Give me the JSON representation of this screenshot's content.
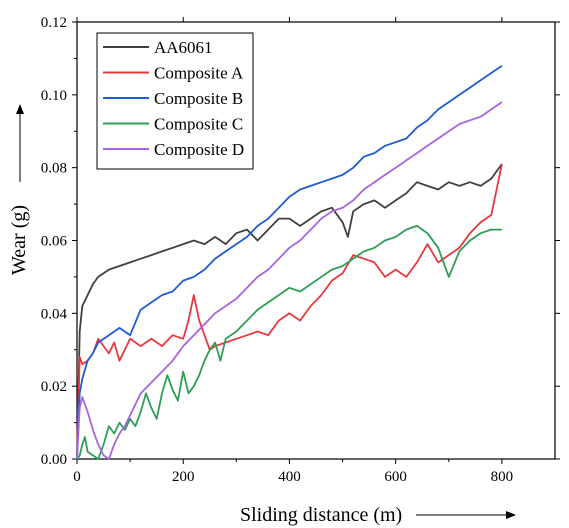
{
  "chart_data": {
    "type": "line",
    "title": "",
    "xlabel": "Sliding distance (m)",
    "ylabel": "Wear (g)",
    "xlim": [
      0,
      900
    ],
    "ylim": [
      0,
      0.12
    ],
    "xticks": [
      0,
      200,
      400,
      600,
      800
    ],
    "yticks": [
      0,
      0.02,
      0.04,
      0.06,
      0.08,
      0.1,
      0.12
    ],
    "xtick_labels": [
      "0",
      "200",
      "400",
      "600",
      "800"
    ],
    "ytick_labels": [
      "0.00",
      "0.02",
      "0.04",
      "0.06",
      "0.08",
      "0.10",
      "0.12"
    ],
    "grid": false,
    "legend_position": "top-left",
    "series": [
      {
        "name": "AA6061",
        "color": "#404040",
        "x": [
          0,
          5,
          10,
          20,
          30,
          40,
          50,
          60,
          80,
          100,
          120,
          140,
          160,
          180,
          200,
          220,
          240,
          260,
          280,
          300,
          320,
          340,
          360,
          380,
          400,
          420,
          440,
          460,
          480,
          500,
          510,
          520,
          540,
          560,
          580,
          600,
          620,
          640,
          660,
          680,
          700,
          720,
          740,
          760,
          780,
          800
        ],
        "values": [
          0.0,
          0.035,
          0.042,
          0.045,
          0.048,
          0.05,
          0.051,
          0.052,
          0.053,
          0.054,
          0.055,
          0.056,
          0.057,
          0.058,
          0.059,
          0.06,
          0.059,
          0.061,
          0.059,
          0.062,
          0.063,
          0.06,
          0.063,
          0.066,
          0.066,
          0.064,
          0.066,
          0.068,
          0.069,
          0.065,
          0.061,
          0.068,
          0.07,
          0.071,
          0.069,
          0.071,
          0.073,
          0.076,
          0.075,
          0.074,
          0.076,
          0.075,
          0.076,
          0.075,
          0.077,
          0.081
        ]
      },
      {
        "name": "Composite A",
        "color": "#e8383d",
        "x": [
          0,
          5,
          10,
          20,
          30,
          40,
          50,
          60,
          70,
          80,
          100,
          120,
          140,
          160,
          180,
          200,
          210,
          220,
          230,
          240,
          250,
          260,
          280,
          300,
          320,
          340,
          360,
          380,
          400,
          420,
          440,
          460,
          480,
          500,
          520,
          540,
          560,
          580,
          600,
          620,
          640,
          660,
          680,
          700,
          720,
          740,
          760,
          780,
          800
        ],
        "values": [
          0.0,
          0.028,
          0.026,
          0.027,
          0.029,
          0.033,
          0.031,
          0.029,
          0.032,
          0.027,
          0.033,
          0.031,
          0.033,
          0.031,
          0.034,
          0.033,
          0.038,
          0.045,
          0.038,
          0.034,
          0.03,
          0.031,
          0.032,
          0.033,
          0.034,
          0.035,
          0.034,
          0.038,
          0.04,
          0.038,
          0.042,
          0.045,
          0.049,
          0.051,
          0.056,
          0.055,
          0.054,
          0.05,
          0.052,
          0.05,
          0.054,
          0.059,
          0.054,
          0.056,
          0.058,
          0.062,
          0.065,
          0.067,
          0.081
        ]
      },
      {
        "name": "Composite B",
        "color": "#1f5bd1",
        "x": [
          0,
          5,
          10,
          20,
          30,
          40,
          60,
          80,
          100,
          120,
          140,
          160,
          180,
          200,
          220,
          240,
          260,
          280,
          300,
          320,
          340,
          360,
          380,
          400,
          420,
          440,
          460,
          480,
          500,
          520,
          540,
          560,
          580,
          600,
          620,
          640,
          660,
          680,
          700,
          720,
          740,
          760,
          780,
          800
        ],
        "values": [
          0.0,
          0.018,
          0.022,
          0.027,
          0.029,
          0.032,
          0.034,
          0.036,
          0.034,
          0.041,
          0.043,
          0.045,
          0.046,
          0.049,
          0.05,
          0.052,
          0.055,
          0.057,
          0.059,
          0.061,
          0.064,
          0.066,
          0.069,
          0.072,
          0.074,
          0.075,
          0.076,
          0.077,
          0.078,
          0.08,
          0.083,
          0.084,
          0.086,
          0.087,
          0.088,
          0.091,
          0.093,
          0.096,
          0.098,
          0.1,
          0.102,
          0.104,
          0.106,
          0.108
        ]
      },
      {
        "name": "Composite C",
        "color": "#2e9e57",
        "x": [
          0,
          5,
          10,
          15,
          20,
          30,
          40,
          50,
          60,
          70,
          80,
          90,
          100,
          110,
          120,
          130,
          140,
          150,
          160,
          170,
          180,
          190,
          200,
          210,
          220,
          230,
          240,
          250,
          260,
          270,
          280,
          300,
          320,
          340,
          360,
          380,
          400,
          420,
          440,
          460,
          480,
          500,
          520,
          540,
          560,
          580,
          600,
          620,
          640,
          660,
          680,
          700,
          720,
          740,
          760,
          780,
          800
        ],
        "values": [
          0.0,
          0.001,
          0.004,
          0.006,
          0.002,
          0.001,
          0.0,
          0.004,
          0.009,
          0.007,
          0.01,
          0.008,
          0.011,
          0.009,
          0.013,
          0.018,
          0.014,
          0.011,
          0.018,
          0.023,
          0.019,
          0.016,
          0.024,
          0.018,
          0.02,
          0.023,
          0.027,
          0.03,
          0.032,
          0.027,
          0.033,
          0.035,
          0.038,
          0.041,
          0.043,
          0.045,
          0.047,
          0.046,
          0.048,
          0.05,
          0.052,
          0.053,
          0.055,
          0.057,
          0.058,
          0.06,
          0.061,
          0.063,
          0.064,
          0.062,
          0.058,
          0.05,
          0.057,
          0.06,
          0.062,
          0.063,
          0.063
        ]
      },
      {
        "name": "Composite D",
        "color": "#a864e0",
        "x": [
          0,
          5,
          10,
          20,
          30,
          40,
          50,
          60,
          70,
          80,
          90,
          100,
          120,
          140,
          160,
          180,
          200,
          220,
          240,
          260,
          280,
          300,
          320,
          340,
          360,
          380,
          400,
          420,
          440,
          460,
          480,
          500,
          520,
          540,
          560,
          580,
          600,
          620,
          640,
          660,
          680,
          700,
          720,
          740,
          760,
          780,
          800
        ],
        "values": [
          0.0,
          0.014,
          0.017,
          0.013,
          0.008,
          0.004,
          0.001,
          0.0,
          0.004,
          0.007,
          0.009,
          0.012,
          0.018,
          0.021,
          0.024,
          0.027,
          0.031,
          0.034,
          0.037,
          0.04,
          0.042,
          0.044,
          0.047,
          0.05,
          0.052,
          0.055,
          0.058,
          0.06,
          0.063,
          0.066,
          0.068,
          0.069,
          0.071,
          0.074,
          0.076,
          0.078,
          0.08,
          0.082,
          0.084,
          0.086,
          0.088,
          0.09,
          0.092,
          0.093,
          0.094,
          0.096,
          0.098
        ]
      }
    ]
  }
}
